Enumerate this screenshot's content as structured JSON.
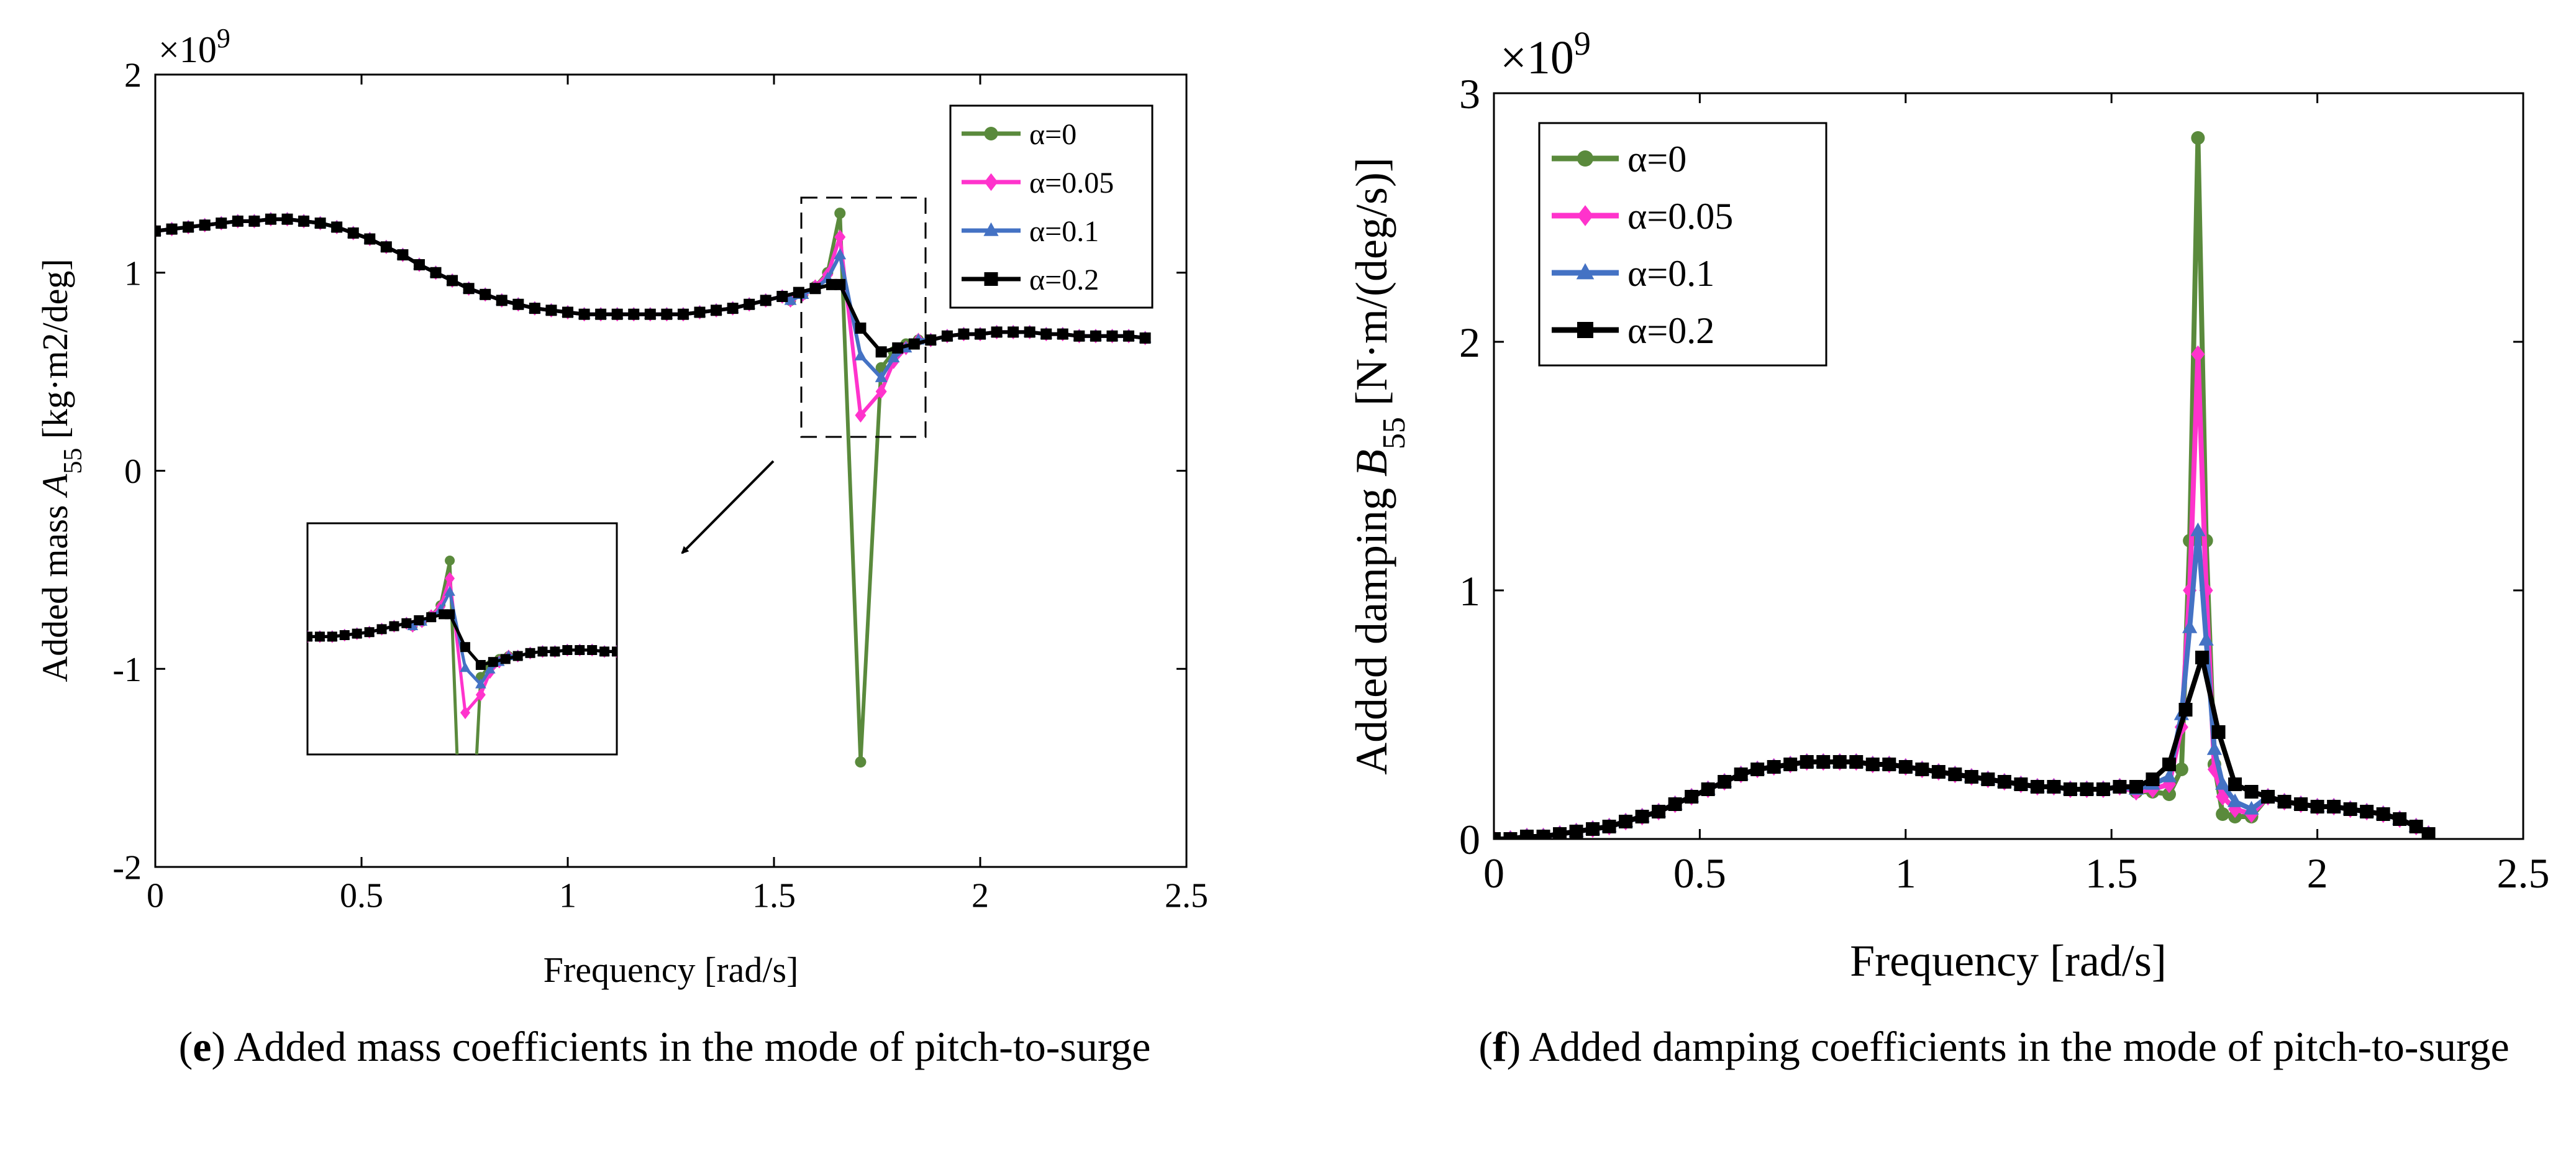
{
  "colors": {
    "alpha_0": "#5a8a3c",
    "alpha_0_05": "#ff33cc",
    "alpha_0_1": "#4472c4",
    "alpha_0_2": "#000000"
  },
  "captions": {
    "e": {
      "letter": "e",
      "text": "Added mass coefficients in the mode of pitch-to-surge"
    },
    "f": {
      "letter": "f",
      "text": "Added damping coefficients in the mode of pitch-to-surge"
    }
  },
  "chart_data": [
    {
      "id": "e",
      "type": "line",
      "title": "",
      "xlabel": "Frequency [rad/s]",
      "ylabel_prefix": "Added mass ",
      "ylabel_symbol": "A",
      "ylabel_sub": "55",
      "ylabel_unit": " [kg·m2/deg]",
      "exponent_label": "×10",
      "exponent_power": "9",
      "xlim": [
        0,
        2.5
      ],
      "ylim": [
        -2,
        2
      ],
      "xticks": [
        "0",
        "0.5",
        "1",
        "1.5",
        "2",
        "2.5"
      ],
      "yticks": [
        "-2",
        "-1",
        "0",
        "1",
        "2"
      ],
      "legend_position": "top-right",
      "inset_shown": true,
      "series": [
        {
          "name": "α=0",
          "marker": "circle",
          "x": [
            1.54,
            1.57,
            1.6,
            1.63,
            1.66,
            1.71,
            1.76,
            1.79,
            1.82,
            1.85
          ],
          "values": [
            0.86,
            0.89,
            0.93,
            1.0,
            1.3,
            -1.47,
            0.52,
            0.6,
            0.64,
            0.66
          ]
        },
        {
          "name": "α=0.05",
          "marker": "diamond",
          "x": [
            1.54,
            1.57,
            1.6,
            1.63,
            1.66,
            1.71,
            1.76,
            1.79,
            1.82,
            1.85
          ],
          "values": [
            0.86,
            0.89,
            0.93,
            0.99,
            1.18,
            0.28,
            0.4,
            0.55,
            0.62,
            0.66
          ]
        },
        {
          "name": "α=0.1",
          "marker": "triangle",
          "x": [
            1.54,
            1.57,
            1.6,
            1.63,
            1.66,
            1.71,
            1.76,
            1.79,
            1.82,
            1.85
          ],
          "values": [
            0.86,
            0.89,
            0.92,
            0.97,
            1.09,
            0.58,
            0.47,
            0.57,
            0.62,
            0.66
          ]
        },
        {
          "name": "α=0.2",
          "marker": "square",
          "x": [
            0.0,
            0.04,
            0.08,
            0.12,
            0.16,
            0.2,
            0.24,
            0.28,
            0.32,
            0.36,
            0.4,
            0.44,
            0.48,
            0.52,
            0.56,
            0.6,
            0.64,
            0.68,
            0.72,
            0.76,
            0.8,
            0.84,
            0.88,
            0.92,
            0.96,
            1.0,
            1.04,
            1.08,
            1.12,
            1.16,
            1.2,
            1.24,
            1.28,
            1.32,
            1.36,
            1.4,
            1.44,
            1.48,
            1.52,
            1.56,
            1.6,
            1.64,
            1.66,
            1.71,
            1.76,
            1.8,
            1.84,
            1.88,
            1.92,
            1.96,
            2.0,
            2.04,
            2.08,
            2.12,
            2.16,
            2.2,
            2.24,
            2.28,
            2.32,
            2.36,
            2.4
          ],
          "values": [
            1.21,
            1.22,
            1.23,
            1.24,
            1.25,
            1.26,
            1.26,
            1.27,
            1.27,
            1.26,
            1.25,
            1.23,
            1.2,
            1.17,
            1.13,
            1.09,
            1.04,
            1.0,
            0.96,
            0.92,
            0.89,
            0.86,
            0.84,
            0.82,
            0.81,
            0.8,
            0.79,
            0.79,
            0.79,
            0.79,
            0.79,
            0.79,
            0.79,
            0.8,
            0.81,
            0.82,
            0.84,
            0.86,
            0.88,
            0.9,
            0.92,
            0.94,
            0.94,
            0.72,
            0.6,
            0.62,
            0.64,
            0.66,
            0.68,
            0.69,
            0.69,
            0.7,
            0.7,
            0.7,
            0.69,
            0.69,
            0.68,
            0.68,
            0.68,
            0.68,
            0.67
          ]
        }
      ]
    },
    {
      "id": "f",
      "type": "line",
      "title": "",
      "xlabel": "Frequency [rad/s]",
      "ylabel_prefix": "Added damping ",
      "ylabel_symbol": "B",
      "ylabel_sub": "55",
      "ylabel_unit": " [N·m/(deg/s)]",
      "exponent_label": "×10",
      "exponent_power": "9",
      "xlim": [
        0,
        2.5
      ],
      "ylim": [
        0,
        3
      ],
      "xticks": [
        "0",
        "0.5",
        "1",
        "1.5",
        "2",
        "2.5"
      ],
      "yticks": [
        "0",
        "1",
        "2",
        "3"
      ],
      "legend_position": "top-left",
      "series": [
        {
          "name": "α=0",
          "marker": "circle",
          "x": [
            1.56,
            1.6,
            1.64,
            1.67,
            1.69,
            1.71,
            1.73,
            1.75,
            1.77,
            1.8,
            1.84
          ],
          "values": [
            0.19,
            0.19,
            0.18,
            0.28,
            1.2,
            2.82,
            1.2,
            0.3,
            0.1,
            0.09,
            0.09
          ]
        },
        {
          "name": "α=0.05",
          "marker": "diamond",
          "x": [
            1.56,
            1.6,
            1.64,
            1.67,
            1.69,
            1.71,
            1.73,
            1.75,
            1.77,
            1.8,
            1.84
          ],
          "values": [
            0.19,
            0.2,
            0.22,
            0.45,
            1.0,
            1.95,
            1.0,
            0.28,
            0.17,
            0.12,
            0.1
          ]
        },
        {
          "name": "α=0.1",
          "marker": "triangle",
          "x": [
            1.56,
            1.6,
            1.64,
            1.67,
            1.69,
            1.71,
            1.73,
            1.75,
            1.77,
            1.8,
            1.84
          ],
          "values": [
            0.2,
            0.22,
            0.25,
            0.5,
            0.85,
            1.24,
            0.8,
            0.36,
            0.22,
            0.15,
            0.12
          ]
        },
        {
          "name": "α=0.2",
          "marker": "square",
          "x": [
            0.0,
            0.04,
            0.08,
            0.12,
            0.16,
            0.2,
            0.24,
            0.28,
            0.32,
            0.36,
            0.4,
            0.44,
            0.48,
            0.52,
            0.56,
            0.6,
            0.64,
            0.68,
            0.72,
            0.76,
            0.8,
            0.84,
            0.88,
            0.92,
            0.96,
            1.0,
            1.04,
            1.08,
            1.12,
            1.16,
            1.2,
            1.24,
            1.28,
            1.32,
            1.36,
            1.4,
            1.44,
            1.48,
            1.52,
            1.56,
            1.6,
            1.64,
            1.68,
            1.72,
            1.76,
            1.8,
            1.84,
            1.88,
            1.92,
            1.96,
            2.0,
            2.04,
            2.08,
            2.12,
            2.16,
            2.2,
            2.24,
            2.27
          ],
          "values": [
            0.0,
            0.0,
            0.01,
            0.01,
            0.02,
            0.03,
            0.04,
            0.05,
            0.07,
            0.09,
            0.11,
            0.14,
            0.17,
            0.2,
            0.23,
            0.26,
            0.28,
            0.29,
            0.3,
            0.31,
            0.31,
            0.31,
            0.31,
            0.3,
            0.3,
            0.29,
            0.28,
            0.27,
            0.26,
            0.25,
            0.24,
            0.23,
            0.22,
            0.21,
            0.21,
            0.2,
            0.2,
            0.2,
            0.21,
            0.21,
            0.24,
            0.3,
            0.52,
            0.73,
            0.43,
            0.22,
            0.19,
            0.17,
            0.15,
            0.14,
            0.13,
            0.13,
            0.12,
            0.11,
            0.1,
            0.08,
            0.05,
            0.02
          ]
        }
      ]
    }
  ]
}
